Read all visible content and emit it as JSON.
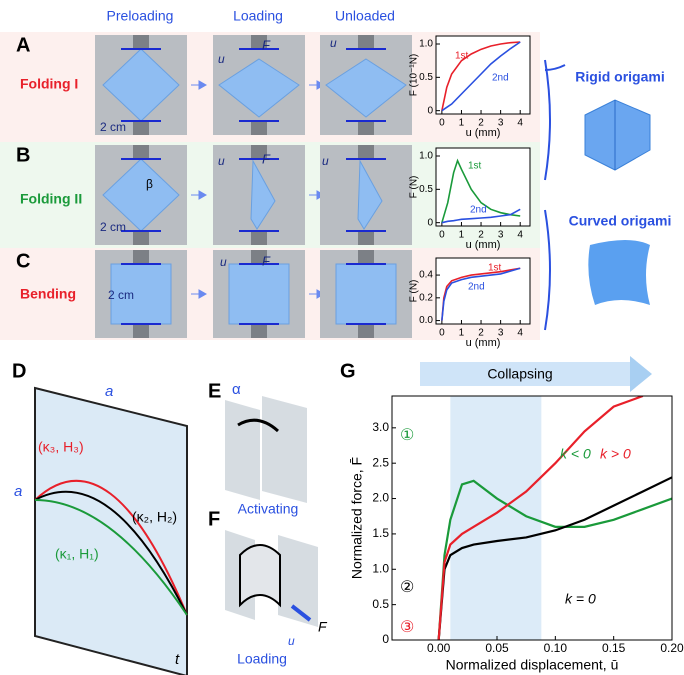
{
  "headers": [
    "Preloading",
    "Loading",
    "Unloaded"
  ],
  "panel_labels": [
    "A",
    "B",
    "C",
    "D",
    "E",
    "F",
    "G"
  ],
  "row_labels": [
    "Folding I",
    "Folding II",
    "Bending"
  ],
  "scale_labels": [
    "2 cm",
    "2 cm",
    "2 cm"
  ],
  "photo_u": [
    "u",
    "u",
    "u",
    "u",
    "u"
  ],
  "photo_f": [
    "F",
    "F",
    "F"
  ],
  "beta": "β",
  "origami_labels": [
    "Rigid origami",
    "Curved origami"
  ],
  "panel_d": {
    "a_top": "a",
    "a_left": "a",
    "k3": "(κ₃, H₃)",
    "k2": "(κ₂, H₂)",
    "k1": "(κ₁, H₁)",
    "t": "t"
  },
  "panel_e": {
    "alpha": "α",
    "caption": "Activating"
  },
  "panel_f": {
    "force": "F",
    "disp": "u",
    "caption": "Loading"
  },
  "collapsing": "Collapsing",
  "chart_data": [
    {
      "type": "line",
      "xlabel": "u (mm)",
      "ylabel": "F (10⁻¹N)",
      "x": [
        0,
        0.25,
        0.5,
        1,
        1.5,
        2,
        2.5,
        3,
        3.5,
        4
      ],
      "series": [
        {
          "name": "1st",
          "color": "#e8202a",
          "values": [
            0,
            0.35,
            0.55,
            0.75,
            0.85,
            0.92,
            0.97,
            1.0,
            1.02,
            1.03
          ]
        },
        {
          "name": "2nd",
          "color": "#2a50e0",
          "values": [
            0,
            0.05,
            0.1,
            0.25,
            0.4,
            0.55,
            0.7,
            0.82,
            0.93,
            1.03
          ]
        }
      ],
      "xlim": [
        -0.3,
        4.5
      ],
      "ylim": [
        -0.05,
        1.12
      ],
      "xticks": [
        0,
        1,
        2,
        3,
        4
      ],
      "yticks": [
        0,
        0.5,
        {
          "value": 1,
          "label": "1.0"
        }
      ]
    },
    {
      "type": "line",
      "xlabel": "u (mm)",
      "ylabel": "F (N)",
      "x": [
        0,
        0.3,
        0.6,
        0.8,
        1,
        1.5,
        2,
        2.5,
        3,
        3.5,
        4
      ],
      "series": [
        {
          "name": "1st",
          "color": "#1a9a3a",
          "values": [
            0,
            0.3,
            0.75,
            0.93,
            0.8,
            0.5,
            0.3,
            0.2,
            0.15,
            0.12,
            0.1
          ]
        },
        {
          "name": "2nd",
          "color": "#2a50e0",
          "values": [
            0,
            0.02,
            0.03,
            0.04,
            0.05,
            0.06,
            0.07,
            0.08,
            0.1,
            0.12,
            0.2
          ]
        }
      ],
      "xlim": [
        -0.3,
        4.5
      ],
      "ylim": [
        -0.05,
        1.12
      ],
      "xticks": [
        0,
        1,
        2,
        3,
        4
      ],
      "yticks": [
        0,
        0.5,
        {
          "value": 1,
          "label": "1.0"
        }
      ]
    },
    {
      "type": "line",
      "xlabel": "u (mm)",
      "ylabel": "F (N)",
      "x": [
        0,
        0.1,
        0.25,
        0.5,
        1,
        1.5,
        2,
        3,
        4
      ],
      "series": [
        {
          "name": "1st",
          "color": "#e8202a",
          "values": [
            0,
            0.2,
            0.3,
            0.35,
            0.38,
            0.4,
            0.41,
            0.43,
            0.46
          ]
        },
        {
          "name": "2nd",
          "color": "#2a50e0",
          "values": [
            0,
            0.17,
            0.27,
            0.33,
            0.36,
            0.38,
            0.39,
            0.41,
            0.46
          ]
        }
      ],
      "xlim": [
        -0.3,
        4.5
      ],
      "ylim": [
        -0.03,
        0.55
      ],
      "xticks": [
        0,
        1,
        2,
        3,
        4
      ],
      "yticks": [
        {
          "value": 0,
          "label": "0.0"
        },
        0.2,
        0.4
      ]
    },
    {
      "type": "line",
      "xlabel": "Normalized displacement, ū",
      "ylabel": "Normalized force, F̄",
      "x": [
        0,
        0.005,
        0.01,
        0.02,
        0.03,
        0.05,
        0.075,
        0.1,
        0.125,
        0.15,
        0.175,
        0.2
      ],
      "series": [
        {
          "name": "①",
          "color": "#1a9a3a",
          "values": [
            0,
            1.2,
            1.7,
            2.2,
            2.25,
            2.0,
            1.75,
            1.6,
            1.6,
            1.7,
            1.85,
            2.0
          ]
        },
        {
          "name": "②",
          "color": "#000000",
          "values": [
            0,
            1.0,
            1.2,
            1.3,
            1.35,
            1.4,
            1.45,
            1.55,
            1.7,
            1.9,
            2.1,
            2.3
          ]
        },
        {
          "name": "③",
          "color": "#e8202a",
          "values": [
            0,
            1.1,
            1.35,
            1.5,
            1.6,
            1.8,
            2.1,
            2.5,
            2.95,
            3.3,
            3.45,
            null
          ]
        }
      ],
      "annotations": [
        "k < 0",
        "k > 0",
        "k = 0"
      ],
      "shaded_range": [
        0.01,
        0.088
      ],
      "xlim": [
        -0.04,
        0.2
      ],
      "ylim": [
        0,
        3.45
      ],
      "xticks": [
        {
          "value": 0,
          "label": "0.00"
        },
        0.05,
        {
          "value": 0.1,
          "label": "0.10"
        },
        0.15,
        {
          "value": 0.2,
          "label": "0.20"
        }
      ],
      "yticks": [
        0,
        0.5,
        {
          "value": 1,
          "label": "1.0"
        },
        1.5,
        {
          "value": 2,
          "label": "2.0"
        },
        2.5,
        {
          "value": 3,
          "label": "3.0"
        }
      ]
    }
  ]
}
